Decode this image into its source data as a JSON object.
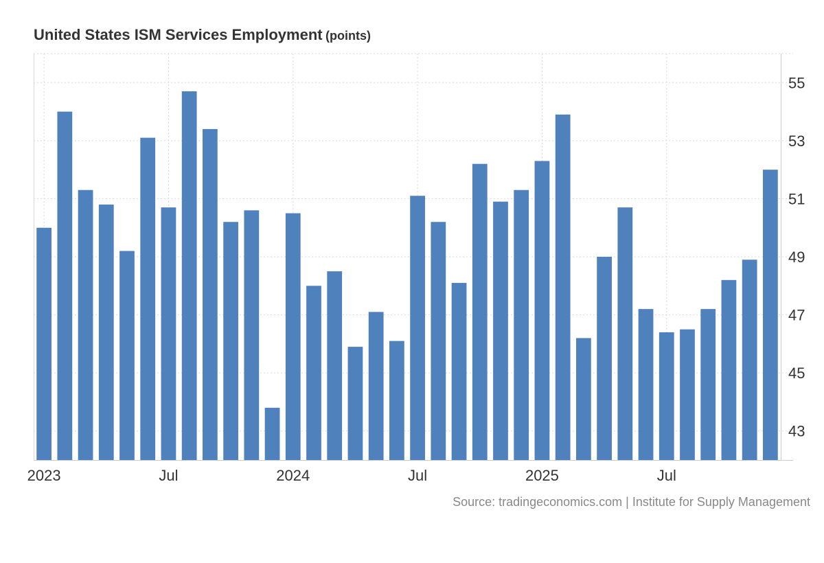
{
  "title": {
    "main": "United States ISM Services Employment",
    "unit": "(points)"
  },
  "source": "Source: tradingeconomics.com | Institute for Supply Management",
  "colors": {
    "bar": "#4f81bd",
    "grid": "#d9d9d9",
    "axis": "#cccccc",
    "text": "#333333"
  },
  "chart_data": {
    "type": "bar",
    "title": "United States ISM Services Employment",
    "ylabel": "points",
    "xlabel": "",
    "ylim": [
      42,
      56
    ],
    "y_ticks": [
      43,
      45,
      47,
      49,
      51,
      53,
      55
    ],
    "y_axis_position": "right",
    "grid": true,
    "legend": "none",
    "x_tick_labels": [
      {
        "label": "2023",
        "index": 0
      },
      {
        "label": "Jul",
        "index": 6
      },
      {
        "label": "2024",
        "index": 12
      },
      {
        "label": "Jul",
        "index": 18
      },
      {
        "label": "2025",
        "index": 24
      },
      {
        "label": "Jul",
        "index": 30
      }
    ],
    "categories": [
      "2023-01",
      "2023-02",
      "2023-03",
      "2023-04",
      "2023-05",
      "2023-06",
      "2023-07",
      "2023-08",
      "2023-09",
      "2023-10",
      "2023-11",
      "2023-12",
      "2024-01",
      "2024-02",
      "2024-03",
      "2024-04",
      "2024-05",
      "2024-06",
      "2024-07",
      "2024-08",
      "2024-09",
      "2024-10",
      "2024-11",
      "2024-12",
      "2025-01",
      "2025-02",
      "2025-03",
      "2025-04",
      "2025-05",
      "2025-06",
      "2025-07",
      "2025-08",
      "2025-09",
      "2025-10",
      "2025-11",
      "2025-12"
    ],
    "values": [
      50.0,
      54.0,
      51.3,
      50.8,
      49.2,
      53.1,
      50.7,
      54.7,
      53.4,
      50.2,
      50.6,
      43.8,
      50.5,
      48.0,
      48.5,
      45.9,
      47.1,
      46.1,
      51.1,
      50.2,
      48.1,
      52.2,
      50.9,
      51.3,
      52.3,
      53.9,
      46.2,
      49.0,
      50.7,
      47.2,
      46.4,
      46.5,
      47.2,
      48.2,
      48.9,
      52.0
    ]
  }
}
